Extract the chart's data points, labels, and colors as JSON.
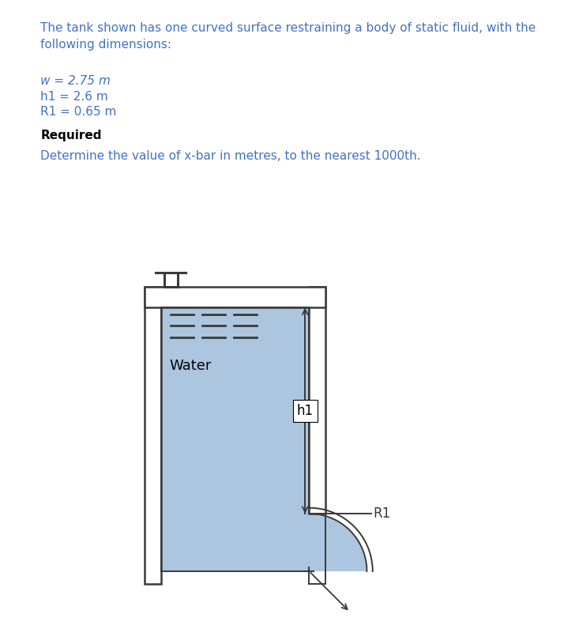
{
  "title_text": "The tank shown has one curved surface restraining a body of static fluid, with the\nfollowing dimensions:",
  "title_color": "#4472C4",
  "w_text": "w = 2.75 m",
  "h1_text": "h1 = 2.6 m",
  "R1_text": "R1 = 0.65 m",
  "param_color": "#4472C4",
  "required_label": "Required",
  "required_color": "#000000",
  "question_text": "Determine the value of x-bar in metres, to the nearest 1000th.",
  "question_color": "#4472C4",
  "water_label": "Water",
  "h1_label": "h1",
  "R1_label": "R1",
  "fluid_color": "#ADC6E0",
  "line_color": "#3a3a3a",
  "bg_color": "#FFFFFF",
  "font_size": 11
}
